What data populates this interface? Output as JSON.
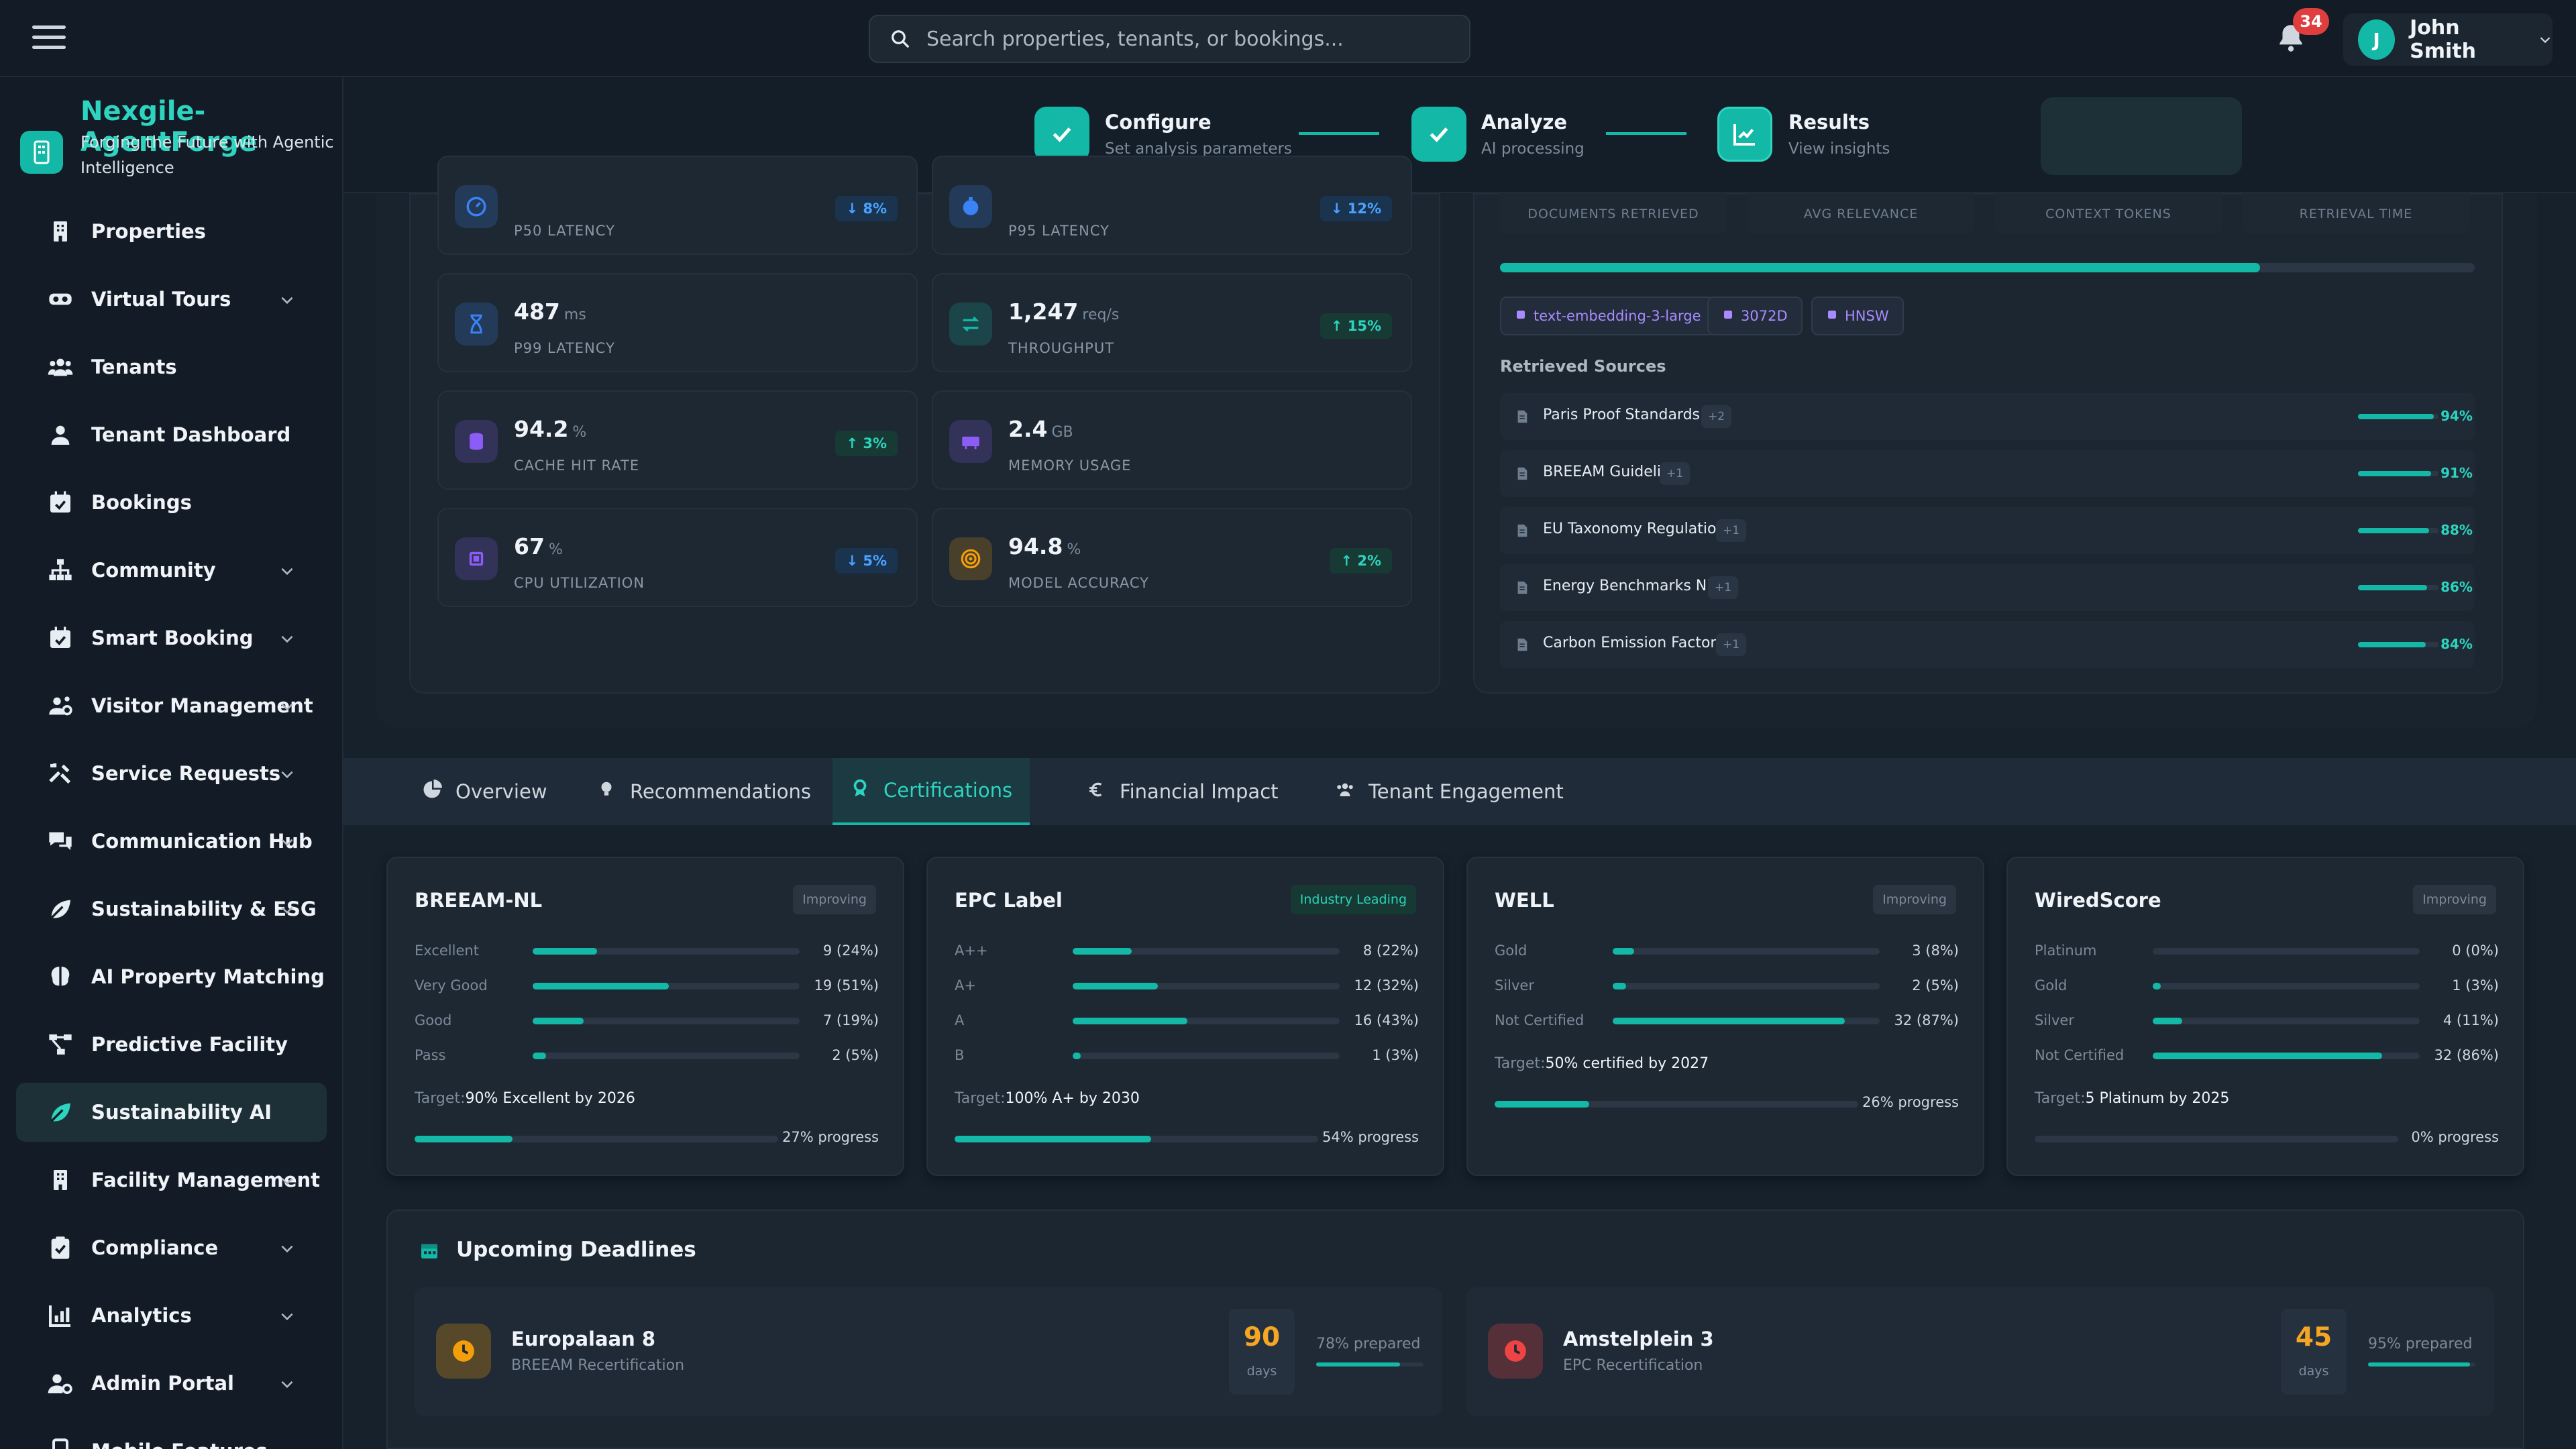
{
  "topbar": {
    "search_placeholder": "Search properties, tenants, or bookings...",
    "notifications_count": "34",
    "user": {
      "initial": "J",
      "name": "John Smith"
    }
  },
  "brand": {
    "name": "Nexgile-AgentForge",
    "tagline": "Forging the Future with Agentic Intelligence"
  },
  "sidebar": {
    "items": [
      {
        "label": "Properties",
        "icon": "building-icon",
        "chevron": false
      },
      {
        "label": "Virtual Tours",
        "icon": "vr-headset-icon",
        "chevron": true
      },
      {
        "label": "Tenants",
        "icon": "users-icon",
        "chevron": false
      },
      {
        "label": "Tenant Dashboard",
        "icon": "user-icon",
        "chevron": false
      },
      {
        "label": "Bookings",
        "icon": "calendar-check-icon",
        "chevron": false
      },
      {
        "label": "Community",
        "icon": "sitemap-icon",
        "chevron": true
      },
      {
        "label": "Smart Booking",
        "icon": "calendar-check-icon",
        "chevron": true
      },
      {
        "label": "Visitor Management",
        "icon": "users-cog-icon",
        "chevron": true
      },
      {
        "label": "Service Requests",
        "icon": "tools-icon",
        "chevron": true
      },
      {
        "label": "Communication Hub",
        "icon": "comments-icon",
        "chevron": true
      },
      {
        "label": "Sustainability & ESG",
        "icon": "leaf-icon",
        "chevron": true
      },
      {
        "label": "AI Property Matching",
        "icon": "brain-icon",
        "chevron": false
      },
      {
        "label": "Predictive Facility",
        "icon": "project-diagram-icon",
        "chevron": false
      },
      {
        "label": "Sustainability AI",
        "icon": "leaf-icon",
        "chevron": false,
        "active": true
      },
      {
        "label": "Facility Management",
        "icon": "building-icon",
        "chevron": true
      },
      {
        "label": "Compliance",
        "icon": "clipboard-check-icon",
        "chevron": true
      },
      {
        "label": "Analytics",
        "icon": "chart-bar-icon",
        "chevron": true
      },
      {
        "label": "Admin Portal",
        "icon": "user-cog-icon",
        "chevron": true
      },
      {
        "label": "Mobile Features",
        "icon": "mobile-icon",
        "chevron": false
      }
    ]
  },
  "stepper": {
    "steps": [
      {
        "title": "Configure",
        "sub": "Set analysis parameters"
      },
      {
        "title": "Analyze",
        "sub": "AI processing"
      },
      {
        "title": "Results",
        "sub": "View insights"
      }
    ]
  },
  "performance": {
    "metrics": [
      {
        "value": "",
        "unit": "",
        "label": "P50 LATENCY",
        "badge": "↓ 8%",
        "dir": "down",
        "color": "#3b82f6"
      },
      {
        "value": "",
        "unit": "",
        "label": "P95 LATENCY",
        "badge": "↓ 12%",
        "dir": "down",
        "color": "#3b82f6"
      },
      {
        "value": "487",
        "unit": "ms",
        "label": "P99 LATENCY",
        "badge": "",
        "dir": "",
        "color": "#3b82f6"
      },
      {
        "value": "1,247",
        "unit": "req/s",
        "label": "THROUGHPUT",
        "badge": "↑ 15%",
        "dir": "up",
        "color": "#14b8a6"
      },
      {
        "value": "94.2",
        "unit": "%",
        "label": "CACHE HIT RATE",
        "badge": "↑ 3%",
        "dir": "up",
        "color": "#8b5cf6"
      },
      {
        "value": "2.4",
        "unit": "GB",
        "label": "MEMORY USAGE",
        "badge": "",
        "dir": "",
        "color": "#8b5cf6"
      },
      {
        "value": "67",
        "unit": "%",
        "label": "CPU UTILIZATION",
        "badge": "↓ 5%",
        "dir": "down",
        "color": "#8b5cf6"
      },
      {
        "value": "94.8",
        "unit": "%",
        "label": "MODEL ACCURACY",
        "badge": "↑ 2%",
        "dir": "up",
        "color": "#f59e0b"
      }
    ]
  },
  "rag": {
    "stats": [
      "DOCUMENTS RETRIEVED",
      "AVG RELEVANCE",
      "CONTEXT TOKENS",
      "RETRIEVAL TIME"
    ],
    "progress": 0.78,
    "chips": [
      "text-embedding-3-large",
      "3072D",
      "HNSW"
    ],
    "retrieved_title": "Retrieved Sources",
    "sources": [
      {
        "name": "Paris Proof Standards",
        "badge": "+2",
        "pct": "94%",
        "value": 0.94
      },
      {
        "name": "BREEAM Guidelines",
        "badge": "+1",
        "pct": "91%",
        "value": 0.91
      },
      {
        "name": "EU Taxonomy Regulation",
        "badge": "+1",
        "pct": "88%",
        "value": 0.88
      },
      {
        "name": "Energy Benchmarks NL",
        "badge": "+1",
        "pct": "86%",
        "value": 0.86
      },
      {
        "name": "Carbon Emission Factors",
        "badge": "+1",
        "pct": "84%",
        "value": 0.84
      }
    ]
  },
  "tabs": [
    {
      "label": "Overview",
      "icon": "chart-pie-icon"
    },
    {
      "label": "Recommendations",
      "icon": "lightbulb-icon"
    },
    {
      "label": "Certifications",
      "icon": "award-icon",
      "active": true
    },
    {
      "label": "Financial Impact",
      "icon": "euro-icon"
    },
    {
      "label": "Tenant Engagement",
      "icon": "users-icon"
    }
  ],
  "certifications": [
    {
      "title": "BREEAM-NL",
      "badge": "Improving",
      "badge_type": "impr",
      "rows": [
        {
          "label": "Excellent",
          "value": "9 (24%)",
          "pct": 0.24
        },
        {
          "label": "Very Good",
          "value": "19 (51%)",
          "pct": 0.51
        },
        {
          "label": "Good",
          "value": "7 (19%)",
          "pct": 0.19
        },
        {
          "label": "Pass",
          "value": "2 (5%)",
          "pct": 0.05
        }
      ],
      "target_label": "Target:",
      "target": "90% Excellent by 2026",
      "progress": 0.27,
      "progress_text": "27% progress"
    },
    {
      "title": "EPC Label",
      "badge": "Industry Leading",
      "badge_type": "lead",
      "rows": [
        {
          "label": "A++",
          "value": "8 (22%)",
          "pct": 0.22
        },
        {
          "label": "A+",
          "value": "12 (32%)",
          "pct": 0.32
        },
        {
          "label": "A",
          "value": "16 (43%)",
          "pct": 0.43
        },
        {
          "label": "B",
          "value": "1 (3%)",
          "pct": 0.03
        }
      ],
      "target_label": "Target:",
      "target": "100% A+ by 2030",
      "progress": 0.54,
      "progress_text": "54% progress"
    },
    {
      "title": "WELL",
      "badge": "Improving",
      "badge_type": "impr",
      "rows": [
        {
          "label": "Gold",
          "value": "3 (8%)",
          "pct": 0.08
        },
        {
          "label": "Silver",
          "value": "2 (5%)",
          "pct": 0.05
        },
        {
          "label": "Not Certified",
          "value": "32 (87%)",
          "pct": 0.87
        }
      ],
      "target_label": "Target:",
      "target": "50% certified by 2027",
      "progress": 0.26,
      "progress_text": "26% progress"
    },
    {
      "title": "WiredScore",
      "badge": "Improving",
      "badge_type": "impr",
      "rows": [
        {
          "label": "Platinum",
          "value": "0 (0%)",
          "pct": 0.0
        },
        {
          "label": "Gold",
          "value": "1 (3%)",
          "pct": 0.03
        },
        {
          "label": "Silver",
          "value": "4 (11%)",
          "pct": 0.11
        },
        {
          "label": "Not Certified",
          "value": "32 (86%)",
          "pct": 0.86
        }
      ],
      "target_label": "Target:",
      "target": "5 Platinum by 2025",
      "progress": 0.0,
      "progress_text": "0% progress"
    }
  ],
  "deadlines": {
    "title": "Upcoming Deadlines",
    "items": [
      {
        "name": "Europalaan 8",
        "sub": "BREEAM Recertification",
        "days": "90",
        "days_label": "days",
        "prepared": "78% prepared",
        "prepared_value": 0.78,
        "color": "#f59e0b",
        "icon": "clock-icon"
      },
      {
        "name": "Amstelplein 3",
        "sub": "EPC Recertification",
        "days": "45",
        "days_label": "days",
        "prepared": "95% prepared",
        "prepared_value": 0.95,
        "color": "#ef4444",
        "icon": "clock-icon"
      }
    ]
  }
}
